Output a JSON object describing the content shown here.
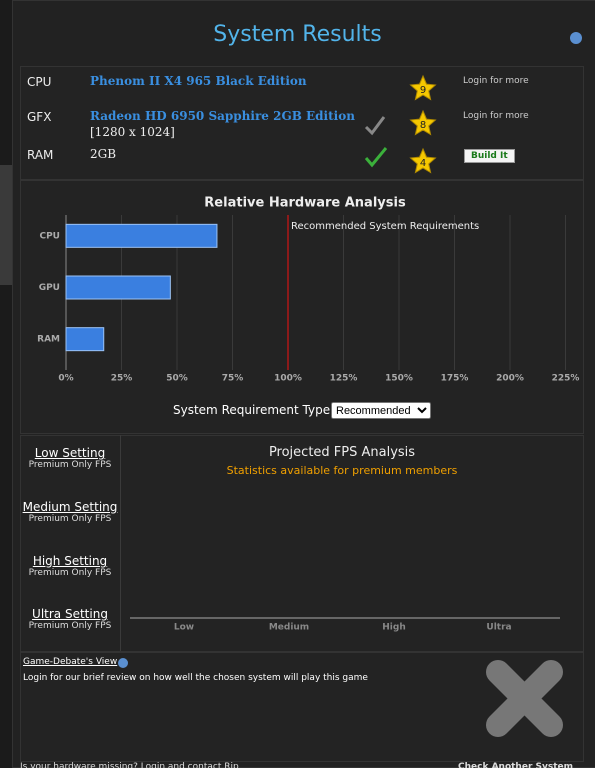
{
  "header": {
    "title": "System Results"
  },
  "hardware": {
    "rows": [
      {
        "label": "CPU",
        "name": "Phenom II X4 965 Black Edition",
        "score": 9,
        "action": "Login for more"
      },
      {
        "label": "GFX",
        "name": "Radeon HD 6950 Sapphire 2GB Edition",
        "detail": "[1280 x 1024]",
        "score": 8,
        "action": "Login for more"
      },
      {
        "label": "RAM",
        "name": "2GB",
        "score": 4,
        "action": "Build It"
      }
    ]
  },
  "analysis": {
    "chart_data": {
      "type": "bar",
      "orientation": "horizontal",
      "title": "Relative Hardware Analysis",
      "categories": [
        "CPU",
        "GPU",
        "RAM"
      ],
      "values": [
        68,
        47,
        17
      ],
      "color": "#3a7fe0",
      "xlim": [
        0,
        225
      ],
      "xticks": [
        {
          "value": 0,
          "label": "0%"
        },
        {
          "value": 25,
          "label": "25%"
        },
        {
          "value": 50,
          "label": "50%"
        },
        {
          "value": 75,
          "label": "75%"
        },
        {
          "value": 100,
          "label": "100%"
        },
        {
          "value": 125,
          "label": "125%"
        },
        {
          "value": 150,
          "label": "150%"
        },
        {
          "value": 175,
          "label": "175%"
        },
        {
          "value": 200,
          "label": "200%"
        },
        {
          "value": 225,
          "label": "225%"
        }
      ],
      "grid": true,
      "reference": {
        "value": 100,
        "label": "Recommended System Requirements",
        "color": "#b01818"
      }
    }
  },
  "requirement": {
    "label": "System Requirement Type:",
    "options": [
      "Recommended"
    ]
  },
  "fps": {
    "settings": [
      {
        "name": "Low Setting",
        "note": "Premium Only FPS"
      },
      {
        "name": "Medium Setting",
        "note": "Premium Only FPS"
      },
      {
        "name": "High Setting",
        "note": "Premium Only FPS"
      },
      {
        "name": "Ultra Setting",
        "note": "Premium Only FPS"
      }
    ],
    "title": "Projected FPS Analysis",
    "subtitle": "Statistics available for premium members",
    "categories": [
      "Low",
      "Medium",
      "High",
      "Ultra"
    ]
  },
  "review": {
    "title": "Game-Debate's View",
    "text": "Login for our brief review on how well the chosen system will play this game"
  },
  "footer": {
    "left": "Is your hardware missing? Login and contact Rip",
    "right": "Check Another System"
  }
}
